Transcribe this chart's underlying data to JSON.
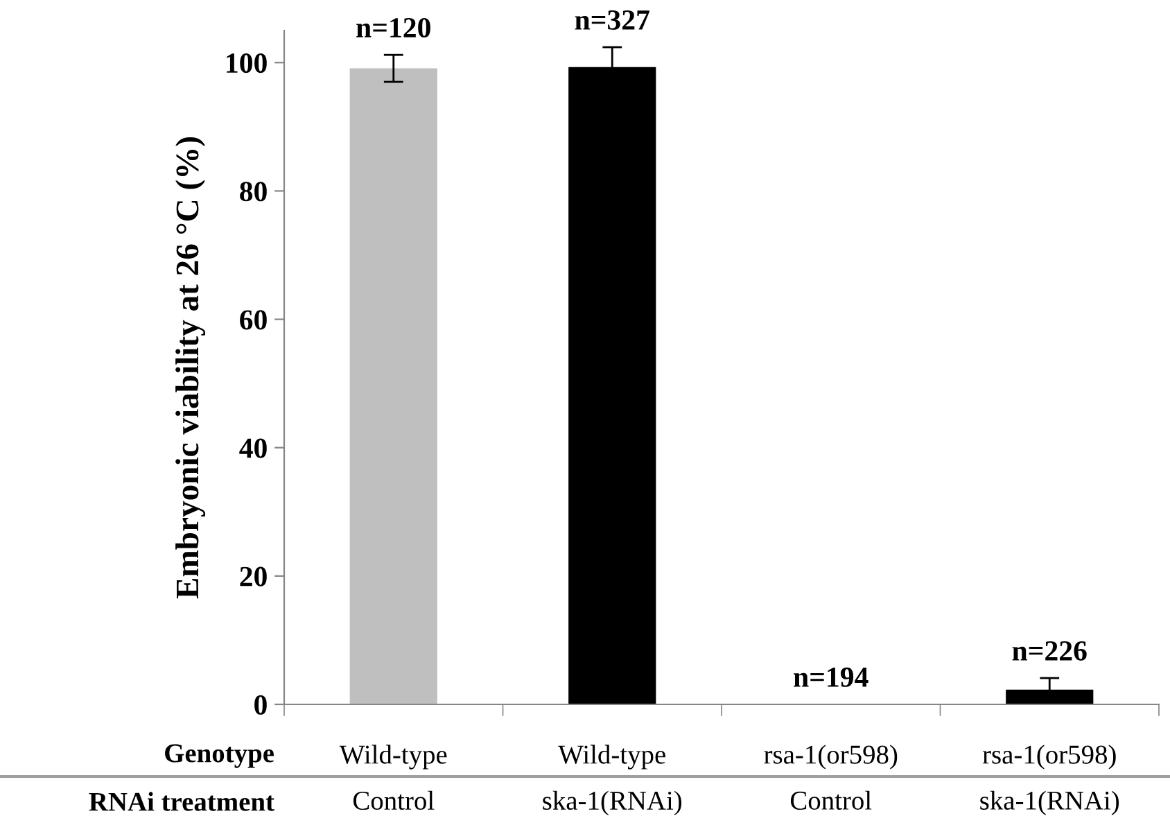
{
  "chart_data": {
    "type": "bar",
    "ylabel": "Embryonic viability at 26 °C (%)",
    "categories": [
      "Wild-type\nControl",
      "Wild-type\nska-1(RNAi)",
      "rsa-1(or598)\nControl",
      "rsa-1(or598)\nska-1(RNAi)"
    ],
    "values": [
      99.1,
      99.3,
      0,
      2.3
    ],
    "errors": [
      2.1,
      3.1,
      null,
      1.8
    ],
    "colors": [
      "#bfbfbf",
      "#000000",
      "#000000",
      "#000000"
    ],
    "ylim": [
      0,
      105
    ],
    "yticks": [
      0,
      20,
      40,
      60,
      80,
      100
    ],
    "grid": false,
    "annotations": [
      "n=120",
      "n=327",
      "n=194",
      "n=226",
      "Genotype",
      "RNAi treatment"
    ]
  }
}
